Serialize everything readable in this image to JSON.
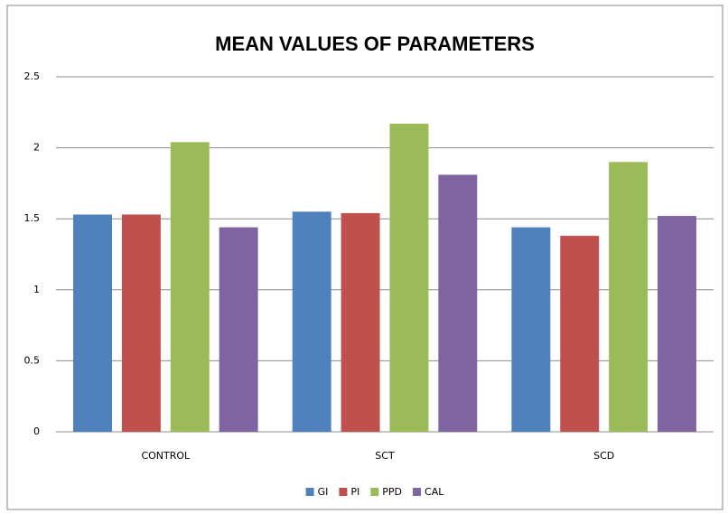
{
  "chart_data": {
    "type": "bar",
    "title": "MEAN VALUES OF PARAMETERS",
    "categories": [
      "CONTROL",
      "SCT",
      "SCD"
    ],
    "series": [
      {
        "name": "GI",
        "color": "#4f81bd",
        "values": [
          1.53,
          1.55,
          1.44
        ]
      },
      {
        "name": "PI",
        "color": "#c0504d",
        "values": [
          1.53,
          1.54,
          1.38
        ]
      },
      {
        "name": "PPD",
        "color": "#9bbb59",
        "values": [
          2.04,
          2.17,
          1.9
        ]
      },
      {
        "name": "CAL",
        "color": "#8064a2",
        "values": [
          1.44,
          1.81,
          1.52
        ]
      }
    ],
    "ylim": [
      0,
      2.5
    ],
    "yticks": [
      0,
      0.5,
      1,
      1.5,
      2,
      2.5
    ],
    "grid": true,
    "legend": "bottom"
  }
}
